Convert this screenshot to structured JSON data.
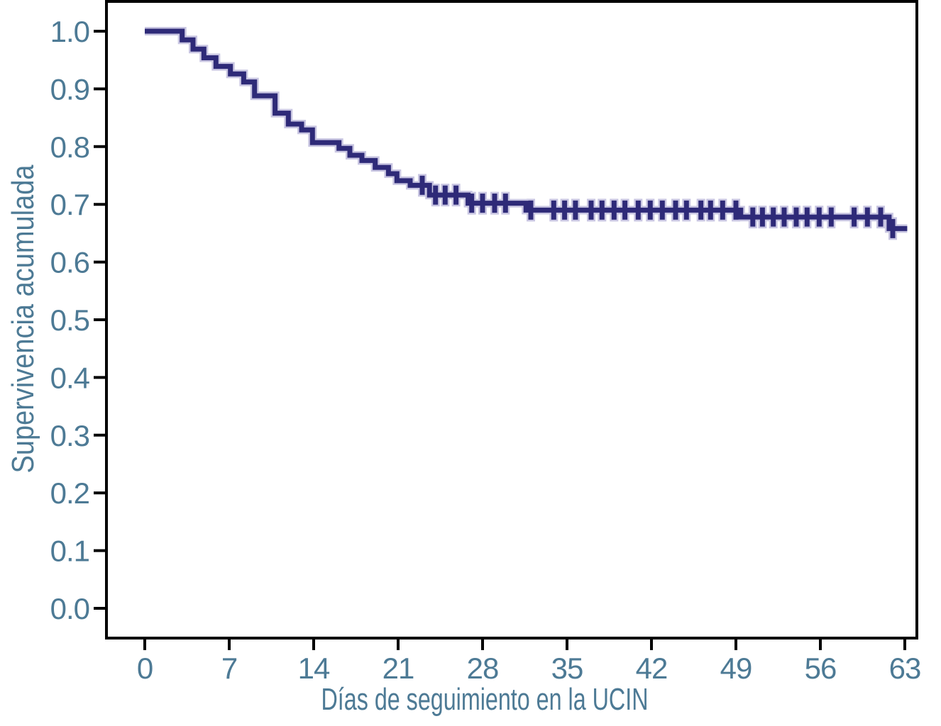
{
  "page": {
    "background": "#ffffff"
  },
  "chart_data": {
    "type": "line",
    "subtype": "kaplan-meier-step-survival",
    "title": "",
    "xlabel": "Días de seguimiento en la UCIN",
    "ylabel": "Supervivencia acumulada",
    "xlim": [
      0,
      63
    ],
    "ylim": [
      0.0,
      1.0
    ],
    "x_ticks": [
      "0",
      "7",
      "14",
      "21",
      "28",
      "35",
      "42",
      "49",
      "56",
      "63"
    ],
    "x_tick_values": [
      0,
      7,
      14,
      21,
      28,
      35,
      42,
      49,
      56,
      63
    ],
    "y_ticks": [
      "0.0",
      "0.1",
      "0.2",
      "0.3",
      "0.4",
      "0.5",
      "0.6",
      "0.7",
      "0.8",
      "0.9",
      "1.0"
    ],
    "y_tick_values": [
      0.0,
      0.1,
      0.2,
      0.3,
      0.4,
      0.5,
      0.6,
      0.7,
      0.8,
      0.9,
      1.0
    ],
    "grid": false,
    "legend": false,
    "colors": {
      "curve": "#2e2a78",
      "curve_halo": "#c9c6e2",
      "axis": "#000000",
      "tick_labels": "#4d7a95",
      "axis_titles": "#4d7a95",
      "background": "#ffffff"
    },
    "series": [
      {
        "name": "Supervivencia acumulada",
        "color": "#2e2a78",
        "end_time": 63.2,
        "steps": [
          {
            "t": 0.0,
            "s": 1.0
          },
          {
            "t": 3.1,
            "s": 0.985
          },
          {
            "t": 4.0,
            "s": 0.969
          },
          {
            "t": 4.9,
            "s": 0.954
          },
          {
            "t": 5.9,
            "s": 0.939
          },
          {
            "t": 7.1,
            "s": 0.926
          },
          {
            "t": 8.2,
            "s": 0.912
          },
          {
            "t": 9.1,
            "s": 0.888
          },
          {
            "t": 10.8,
            "s": 0.858
          },
          {
            "t": 11.9,
            "s": 0.839
          },
          {
            "t": 13.0,
            "s": 0.829
          },
          {
            "t": 13.9,
            "s": 0.807
          },
          {
            "t": 16.1,
            "s": 0.797
          },
          {
            "t": 17.0,
            "s": 0.785
          },
          {
            "t": 18.0,
            "s": 0.776
          },
          {
            "t": 19.1,
            "s": 0.764
          },
          {
            "t": 20.2,
            "s": 0.753
          },
          {
            "t": 20.9,
            "s": 0.741
          },
          {
            "t": 22.0,
            "s": 0.733
          },
          {
            "t": 23.6,
            "s": 0.716
          },
          {
            "t": 26.8,
            "s": 0.702
          },
          {
            "t": 31.6,
            "s": 0.69
          },
          {
            "t": 49.4,
            "s": 0.678
          },
          {
            "t": 61.7,
            "s": 0.658
          }
        ],
        "censor_marks": [
          {
            "t": 23.0,
            "s": 0.733
          },
          {
            "t": 24.1,
            "s": 0.716
          },
          {
            "t": 24.9,
            "s": 0.716
          },
          {
            "t": 25.8,
            "s": 0.716
          },
          {
            "t": 27.1,
            "s": 0.702
          },
          {
            "t": 28.0,
            "s": 0.702
          },
          {
            "t": 29.0,
            "s": 0.702
          },
          {
            "t": 29.9,
            "s": 0.702
          },
          {
            "t": 32.0,
            "s": 0.69
          },
          {
            "t": 33.9,
            "s": 0.69
          },
          {
            "t": 34.8,
            "s": 0.69
          },
          {
            "t": 35.7,
            "s": 0.69
          },
          {
            "t": 37.0,
            "s": 0.69
          },
          {
            "t": 37.9,
            "s": 0.69
          },
          {
            "t": 38.9,
            "s": 0.69
          },
          {
            "t": 39.8,
            "s": 0.69
          },
          {
            "t": 40.9,
            "s": 0.69
          },
          {
            "t": 41.9,
            "s": 0.69
          },
          {
            "t": 42.9,
            "s": 0.69
          },
          {
            "t": 44.0,
            "s": 0.69
          },
          {
            "t": 44.9,
            "s": 0.69
          },
          {
            "t": 46.1,
            "s": 0.69
          },
          {
            "t": 46.9,
            "s": 0.69
          },
          {
            "t": 47.9,
            "s": 0.69
          },
          {
            "t": 49.0,
            "s": 0.69
          },
          {
            "t": 50.4,
            "s": 0.678
          },
          {
            "t": 51.2,
            "s": 0.678
          },
          {
            "t": 52.1,
            "s": 0.678
          },
          {
            "t": 53.0,
            "s": 0.678
          },
          {
            "t": 54.0,
            "s": 0.678
          },
          {
            "t": 54.9,
            "s": 0.678
          },
          {
            "t": 55.9,
            "s": 0.678
          },
          {
            "t": 56.9,
            "s": 0.678
          },
          {
            "t": 58.8,
            "s": 0.678
          },
          {
            "t": 59.9,
            "s": 0.678
          },
          {
            "t": 61.0,
            "s": 0.678
          },
          {
            "t": 62.0,
            "s": 0.658
          }
        ]
      }
    ]
  }
}
